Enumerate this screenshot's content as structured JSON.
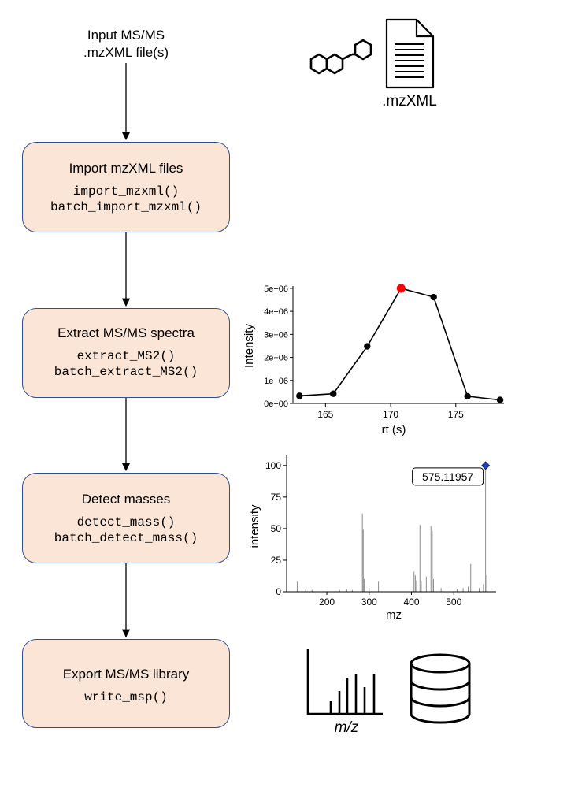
{
  "input": {
    "line1": "Input MS/MS",
    "line2": ".mzXML file(s)"
  },
  "steps": [
    {
      "title": "Import mzXML files",
      "functions": [
        "import_mzxml()",
        "batch_import_mzxml()"
      ]
    },
    {
      "title": "Extract MS/MS spectra",
      "functions": [
        "extract_MS2()",
        "batch_extract_MS2()"
      ]
    },
    {
      "title": "Detect masses",
      "functions": [
        "detect_mass()",
        "batch_detect_mass()"
      ]
    },
    {
      "title": "Export MS/MS library",
      "functions": [
        "write_msp()"
      ]
    }
  ],
  "file_icon_label": ".mzXML",
  "mz_icon_label": "m/z",
  "colors": {
    "box_fill": "#fbe5d6",
    "box_border": "#2f4f8f",
    "highlight_point": "#ff0000",
    "precursor_marker": "#1f3fbf"
  },
  "icons": [
    "molecule-icon",
    "document-icon",
    "spectrum-icon",
    "database-icon"
  ],
  "chart_data": [
    {
      "type": "line",
      "xlabel": "rt (s)",
      "ylabel": "Intensity",
      "x_ticks": [
        "165",
        "170",
        "175"
      ],
      "y_ticks": [
        "0e+00",
        "1e+06",
        "2e+06",
        "3e+06",
        "4e+06",
        "5e+06"
      ],
      "xlim": [
        162.5,
        178.7
      ],
      "ylim": [
        0,
        5100000
      ],
      "points": [
        {
          "x": 163.0,
          "y": 330000
        },
        {
          "x": 165.6,
          "y": 420000
        },
        {
          "x": 168.2,
          "y": 2480000
        },
        {
          "x": 170.8,
          "y": 5000000,
          "highlight": true
        },
        {
          "x": 173.3,
          "y": 4620000
        },
        {
          "x": 175.9,
          "y": 310000
        },
        {
          "x": 178.4,
          "y": 150000
        }
      ]
    },
    {
      "type": "bar",
      "xlabel": "mz",
      "ylabel": "intensity",
      "x_ticks": [
        "200",
        "300",
        "400",
        "500"
      ],
      "y_ticks": [
        "0",
        "25",
        "50",
        "75",
        "100"
      ],
      "xlim": [
        105,
        600
      ],
      "ylim": [
        0,
        108
      ],
      "annotation": "575.11957",
      "precursor": {
        "mz": 575.12,
        "intensity": 100
      },
      "peaks": [
        {
          "mz": 130,
          "intensity": 8
        },
        {
          "mz": 150,
          "intensity": 2
        },
        {
          "mz": 165,
          "intensity": 1.5
        },
        {
          "mz": 230,
          "intensity": 1.5
        },
        {
          "mz": 247,
          "intensity": 2
        },
        {
          "mz": 260,
          "intensity": 1.5
        },
        {
          "mz": 284,
          "intensity": 62
        },
        {
          "mz": 286,
          "intensity": 49
        },
        {
          "mz": 288,
          "intensity": 10
        },
        {
          "mz": 290,
          "intensity": 6
        },
        {
          "mz": 300,
          "intensity": 3
        },
        {
          "mz": 322,
          "intensity": 8
        },
        {
          "mz": 406,
          "intensity": 16
        },
        {
          "mz": 409,
          "intensity": 13
        },
        {
          "mz": 412,
          "intensity": 9
        },
        {
          "mz": 420,
          "intensity": 53
        },
        {
          "mz": 423,
          "intensity": 8
        },
        {
          "mz": 435,
          "intensity": 12
        },
        {
          "mz": 446,
          "intensity": 52
        },
        {
          "mz": 449,
          "intensity": 48
        },
        {
          "mz": 452,
          "intensity": 10
        },
        {
          "mz": 470,
          "intensity": 3
        },
        {
          "mz": 508,
          "intensity": 2
        },
        {
          "mz": 522,
          "intensity": 3
        },
        {
          "mz": 534,
          "intensity": 4
        },
        {
          "mz": 540,
          "intensity": 22
        },
        {
          "mz": 560,
          "intensity": 3
        },
        {
          "mz": 570,
          "intensity": 6
        },
        {
          "mz": 578,
          "intensity": 13
        }
      ]
    }
  ]
}
